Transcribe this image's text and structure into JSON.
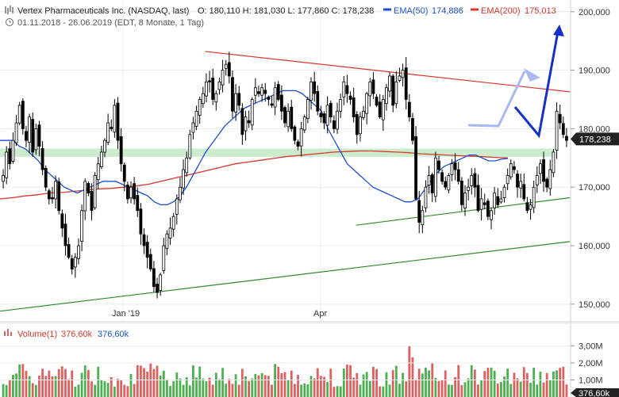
{
  "header": {
    "title_line": "Vertex Pharmaceuticals Inc. (NASDAQ, last)",
    "ohlc": "O: 180,110  H: 181,030  L: 177,860  C: 178,238",
    "ema50_label": "EMA(50)",
    "ema50_value": "174,886",
    "ema200_label": "EMA(200)",
    "ema200_value": "175,013",
    "range_line": "01.11.2018 - 26.06.2019   (EDT, 8 Monate, 1 Tag)"
  },
  "colors": {
    "up": "#2e7d32",
    "down": "#000000",
    "ema50": "#1a4fd6",
    "ema200": "#d9372b",
    "resistance": "#d9372b",
    "support": "#2e8b2e",
    "zone": "#cdeccd",
    "projection_light": "#a9b8f0",
    "projection_dark": "#1331c9",
    "vol_up": "#4caf50",
    "vol_down": "#e06060",
    "price_tag_bg": "#222222"
  },
  "price_axis": {
    "ticks": [
      "200,000",
      "190,000",
      "180,000",
      "170,000",
      "160,000",
      "150,000"
    ],
    "last_price": "178,238"
  },
  "time_axis": {
    "ticks": [
      "Jan '19",
      "Apr"
    ]
  },
  "volume": {
    "label": "Volume(1)",
    "value_red": "376,60k",
    "value_blue": "376,60k",
    "ticks": [
      "3,00M",
      "2,00M",
      "1,00M"
    ],
    "last_tag": "376,60k"
  },
  "chart_data": {
    "type": "candlestick",
    "title": "Vertex Pharmaceuticals Inc. (NASDAQ, last)",
    "period": "01.11.2018 - 26.06.2019",
    "ylim": [
      147,
      202
    ],
    "y_ticks": [
      150,
      160,
      170,
      180,
      190,
      200
    ],
    "last_close": 178.238,
    "series": [
      {
        "name": "EMA(50)",
        "last": 174.886
      },
      {
        "name": "EMA(200)",
        "last": 175.013
      }
    ],
    "x_ticks": [
      "Jan '19",
      "Apr"
    ],
    "closes": [
      172,
      176,
      174,
      178,
      181,
      184,
      180,
      178,
      182,
      176,
      180,
      177,
      173,
      170,
      168,
      168,
      171,
      166,
      163,
      160,
      158,
      156,
      158,
      160,
      166,
      171,
      169,
      166,
      172,
      174,
      176,
      178,
      181,
      180,
      184,
      178,
      174,
      171,
      168,
      170,
      168,
      166,
      162,
      160,
      158,
      156,
      153,
      152,
      155,
      160,
      162,
      163,
      165,
      168,
      170,
      173,
      175,
      179,
      181,
      183,
      185,
      186,
      188,
      188,
      185,
      186,
      188,
      190,
      191,
      189,
      183,
      186,
      184,
      179,
      182,
      181,
      185,
      187,
      186,
      187,
      186,
      185,
      184,
      187,
      185,
      183,
      181,
      183,
      180,
      178,
      177,
      180,
      182,
      185,
      188,
      186,
      183,
      182,
      181,
      184,
      182,
      180,
      183,
      185,
      188,
      186,
      185,
      182,
      179,
      182,
      183,
      186,
      188,
      186,
      184,
      182,
      185,
      187,
      189,
      184,
      188,
      189,
      190,
      185,
      182,
      178,
      168,
      164,
      166,
      170,
      172,
      169,
      175,
      173,
      171,
      170,
      172,
      174,
      173,
      171,
      167,
      169,
      170,
      172,
      170,
      166,
      168,
      167,
      165,
      166,
      169,
      167,
      168,
      170,
      172,
      174,
      173,
      170,
      171,
      168,
      166,
      167,
      170,
      172,
      174,
      171,
      170,
      173,
      176,
      183,
      181,
      179,
      178
    ],
    "ema50": [
      178,
      178,
      178,
      177,
      176.5,
      175.5,
      174.5,
      173,
      172,
      171,
      170,
      169.5,
      169,
      169.5,
      170,
      170.5,
      171,
      171,
      171,
      170.5,
      170,
      169.5,
      169,
      168.5,
      167.5,
      167,
      167,
      167.5,
      168.5,
      170,
      172,
      174,
      176,
      177.5,
      179,
      180.5,
      181.5,
      182.5,
      183.5,
      184,
      184.5,
      185,
      185.5,
      186,
      186.5,
      186.5,
      186.5,
      186,
      185,
      184,
      183,
      180,
      178,
      176,
      174,
      173,
      172,
      171,
      170,
      169.5,
      169,
      168.5,
      168,
      167.5,
      167.5,
      168,
      169.5,
      171,
      172.5,
      173.5,
      174,
      174.5,
      175,
      175.5,
      175.5,
      175,
      174.5,
      174.5,
      174.8,
      174.9
    ],
    "ema200": [
      168,
      168.2,
      168.5,
      168.7,
      169,
      169.1,
      169.3,
      169.5,
      169.7,
      169.8,
      170,
      170.2,
      170.5,
      171,
      171.5,
      172,
      172.5,
      173,
      173.5,
      174,
      174.3,
      174.6,
      174.9,
      175.2,
      175.4,
      175.6,
      175.8,
      176,
      176.1,
      176.2,
      176.2,
      176.1,
      176,
      175.9,
      175.7,
      175.6,
      175.5,
      175.4,
      175.3,
      175.2,
      175.1,
      175
    ],
    "trendlines": [
      {
        "name": "resistance",
        "from": [
          0.36,
          193.2
        ],
        "to": [
          1.0,
          186.3
        ]
      },
      {
        "name": "support_short",
        "from": [
          0.625,
          163.5
        ],
        "to": [
          1.0,
          168.2
        ]
      },
      {
        "name": "support_long",
        "from": [
          0.0,
          148.8
        ],
        "to": [
          1.0,
          160.7
        ]
      }
    ],
    "zone": [
      175.2,
      176.6
    ],
    "volume_ylim": [
      0,
      3.4
    ],
    "volume_ticks_m": [
      3,
      2,
      1
    ],
    "volume_last_k": 376.6
  }
}
